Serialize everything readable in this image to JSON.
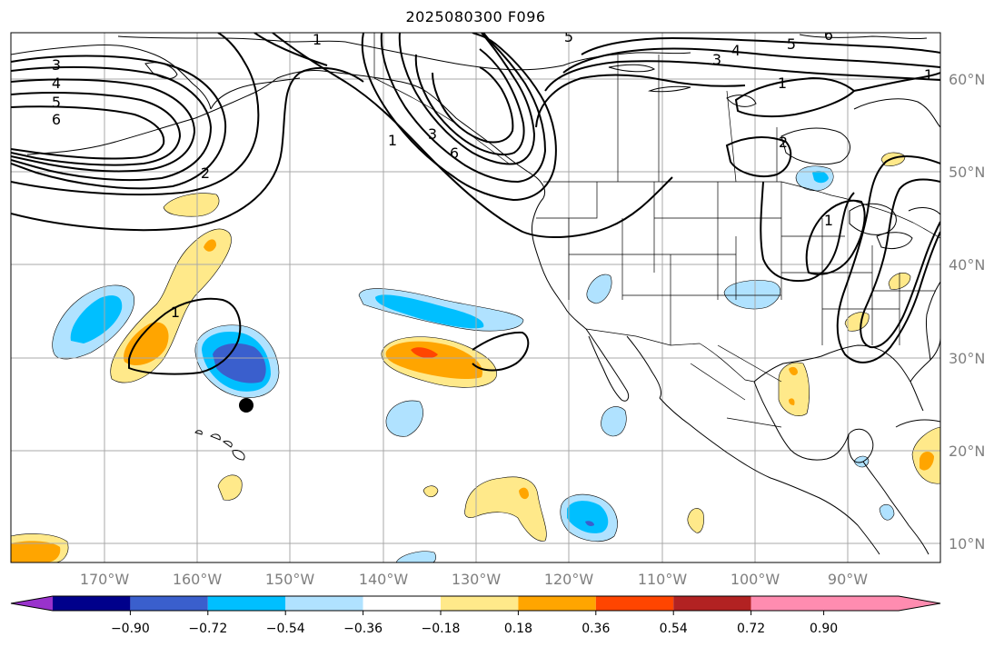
{
  "title": "2025080300 F096",
  "map": {
    "lon_labels": [
      "170°W",
      "160°W",
      "150°W",
      "140°W",
      "130°W",
      "120°W",
      "110°W",
      "100°W",
      "90°W"
    ],
    "lat_labels": [
      "60°N",
      "50°N",
      "40°N",
      "30°N",
      "20°N",
      "10°N"
    ],
    "contour_labels": {
      "a": "3",
      "b": "4",
      "c": "5",
      "d": "6",
      "e": "2",
      "f": "1",
      "g": "1",
      "h": "1",
      "i": "3",
      "j": "6",
      "k": "5",
      "l": "3",
      "m": "4",
      "n": "5",
      "o": "6",
      "p": "1",
      "q": "1",
      "r": "2",
      "s": "1"
    }
  },
  "colorbar": {
    "ticks": [
      "−0.90",
      "−0.72",
      "−0.54",
      "−0.36",
      "−0.18",
      "0.18",
      "0.36",
      "0.54",
      "0.72",
      "0.90"
    ],
    "colors": [
      "#9932cc",
      "#00008b",
      "#3a5fcd",
      "#00bfff",
      "#b0e2ff",
      "#ffffff",
      "#ffe98a",
      "#ffa500",
      "#ff4500",
      "#b22222",
      "#ff8cb0"
    ]
  },
  "colors": {
    "neg_light": "#b0e2ff",
    "neg_mid": "#00bfff",
    "neg_dark": "#3a5fcd",
    "pos_light": "#ffe98a",
    "pos_mid": "#ffa500",
    "pos_dark": "#ff4500"
  }
}
